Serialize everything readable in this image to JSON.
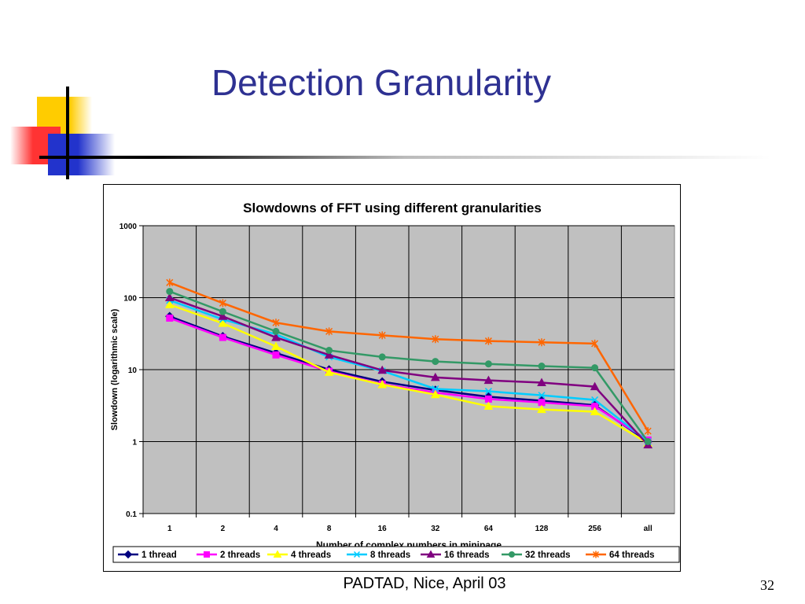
{
  "slide": {
    "title": "Detection Granularity",
    "footer": "PADTAD, Nice, April 03",
    "page_number": "32"
  },
  "colors": {
    "title": "#2e3192",
    "plot_background": "#c0c0c0",
    "deco_yellow": "#ffcc00",
    "deco_red": "#ff3333",
    "deco_blue": "#2233cc"
  },
  "chart_data": {
    "type": "line",
    "title": "Slowdowns of FFT using different granularities",
    "xlabel": "Number of complex numbers in minipage",
    "ylabel": "Slowdown (logarithmic scale)",
    "y_scale": "log",
    "ylim": [
      0.1,
      1000
    ],
    "y_ticks": [
      "0.1",
      "1",
      "10",
      "100",
      "1000"
    ],
    "categories": [
      "1",
      "2",
      "4",
      "8",
      "16",
      "32",
      "64",
      "128",
      "256",
      "all"
    ],
    "grid": true,
    "legend_position": "bottom",
    "series": [
      {
        "name": "1 thread",
        "color": "#000080",
        "marker": "diamond",
        "values": [
          55,
          29,
          17,
          10,
          6.8,
          5.2,
          4.2,
          3.7,
          3.2,
          1.0
        ]
      },
      {
        "name": "2 threads",
        "color": "#ff00ff",
        "marker": "square",
        "values": [
          52,
          28,
          16,
          9.5,
          6.3,
          4.8,
          3.9,
          3.5,
          3.1,
          1.05
        ]
      },
      {
        "name": "4 threads",
        "color": "#ffff00",
        "marker": "triangle",
        "values": [
          80,
          44,
          21,
          9.2,
          6.2,
          4.5,
          3.1,
          2.8,
          2.6,
          0.95
        ]
      },
      {
        "name": "8 threads",
        "color": "#00ccff",
        "marker": "x",
        "values": [
          92,
          50,
          31,
          15,
          9.6,
          5.4,
          5.0,
          4.4,
          3.8,
          1.0
        ]
      },
      {
        "name": "16 threads",
        "color": "#800080",
        "marker": "triangle",
        "values": [
          100,
          55,
          28,
          16,
          9.8,
          7.8,
          7.1,
          6.6,
          5.8,
          0.9
        ]
      },
      {
        "name": "32 threads",
        "color": "#339966",
        "marker": "circle",
        "values": [
          122,
          64,
          34,
          18.5,
          15,
          13,
          12,
          11.2,
          10.6,
          1.0
        ]
      },
      {
        "name": "64 threads",
        "color": "#ff6600",
        "marker": "asterisk",
        "values": [
          162,
          84,
          45,
          34,
          30,
          26.5,
          25,
          24,
          23,
          1.4
        ]
      }
    ]
  }
}
